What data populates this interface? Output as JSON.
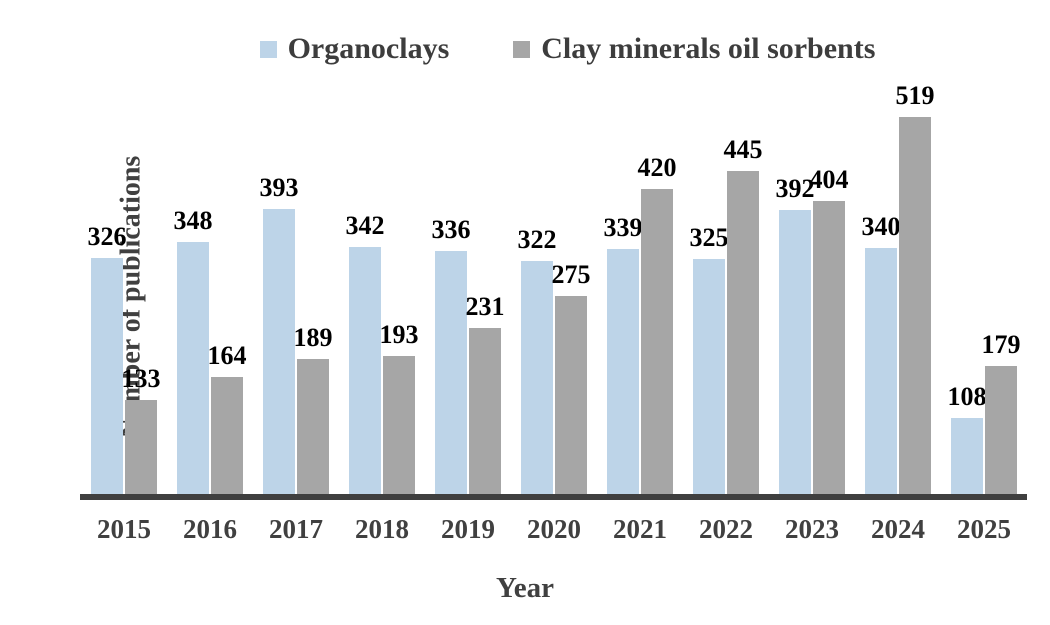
{
  "legend": {
    "items": [
      {
        "label": "Organoclays",
        "color": "#bdd4e8"
      },
      {
        "label": "Clay minerals oil sorbents",
        "color": "#a6a6a6"
      }
    ]
  },
  "axes": {
    "y_title": "Number of publications",
    "x_title": "Year"
  },
  "colors": {
    "organoclays_bar": "#bdd4e8",
    "clay_sorbents_bar": "#a6a6a6",
    "axis_line": "#3f3f3f",
    "axis_text": "#404040",
    "data_label": "#000000"
  },
  "chart_data": {
    "type": "bar",
    "title": "",
    "xlabel": "Year",
    "ylabel": "Number of publications",
    "categories": [
      "2015",
      "2016",
      "2017",
      "2018",
      "2019",
      "2020",
      "2021",
      "2022",
      "2023",
      "2024",
      "2025"
    ],
    "series": [
      {
        "name": "Organoclays",
        "color": "#bdd4e8",
        "values": [
          326,
          348,
          393,
          342,
          336,
          322,
          339,
          325,
          392,
          340,
          108
        ]
      },
      {
        "name": "Clay minerals oil sorbents",
        "color": "#a6a6a6",
        "values": [
          133,
          164,
          189,
          193,
          231,
          275,
          420,
          445,
          404,
          519,
          179
        ]
      }
    ],
    "ylim": [
      0,
      560
    ],
    "grid": false,
    "legend_position": "top",
    "data_labels": true,
    "y_axis_ticks_visible": false
  }
}
